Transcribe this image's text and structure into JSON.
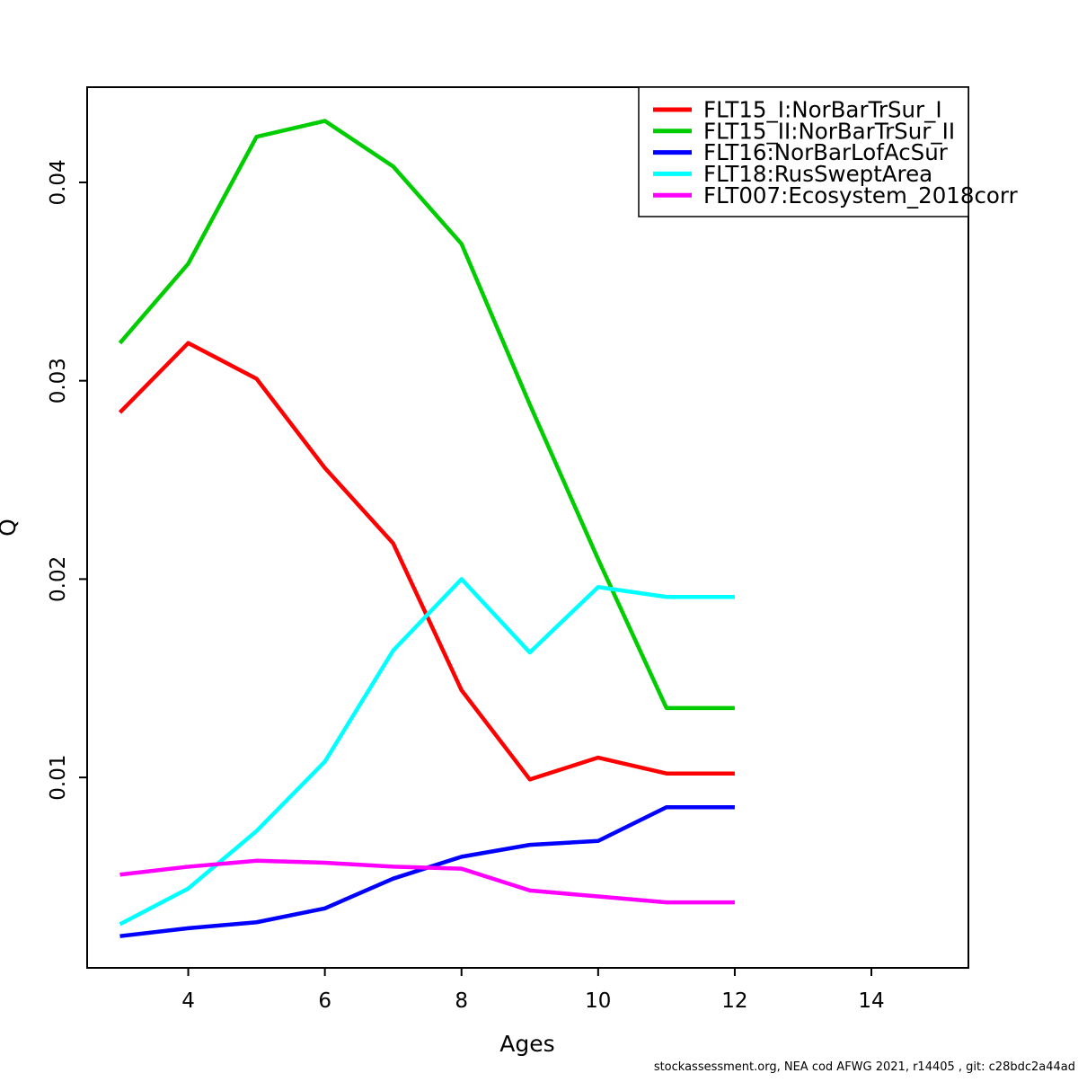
{
  "figure": {
    "footer": "stockassessment.org, NEA cod AFWG 2021, r14405 , git: c28bdc2a44ad"
  },
  "chart_data": {
    "type": "line",
    "title": "",
    "xlabel": "Ages",
    "ylabel": "Q",
    "x": [
      3,
      4,
      5,
      6,
      7,
      8,
      9,
      10,
      11,
      12
    ],
    "series": [
      {
        "name": "FLT15_I:NorBarTrSur_I",
        "color": "#FF0000",
        "values": [
          0.0284,
          0.0319,
          0.0301,
          0.0256,
          0.0218,
          0.0144,
          0.0099,
          0.011,
          0.0102,
          0.0102
        ]
      },
      {
        "name": "FLT15_II:NorBarTrSur_II",
        "color": "#00CD00",
        "values": [
          0.0319,
          0.0359,
          0.0423,
          0.0431,
          0.0408,
          0.0369,
          0.0288,
          0.021,
          0.0135,
          0.0135
        ]
      },
      {
        "name": "FLT16:NorBarLofAcSur",
        "color": "#0000FF",
        "values": [
          0.002,
          0.0024,
          0.0027,
          0.0034,
          0.0049,
          0.006,
          0.0066,
          0.0068,
          0.0085,
          0.0085
        ]
      },
      {
        "name": "FLT18:RusSweptArea",
        "color": "#00FFFF",
        "values": [
          0.0026,
          0.0044,
          0.0073,
          0.0108,
          0.0164,
          0.02,
          0.0163,
          0.0196,
          0.0191,
          0.0191
        ]
      },
      {
        "name": "FLT007:Ecosystem_2018corr",
        "color": "#FF00FF",
        "values": [
          0.0051,
          0.0055,
          0.0058,
          0.0057,
          0.0055,
          0.0054,
          0.0043,
          0.004,
          0.0037,
          0.0037
        ]
      }
    ],
    "x_ticks": [
      4,
      6,
      8,
      10,
      12,
      14
    ],
    "y_ticks": [
      0.01,
      0.02,
      0.03,
      0.04
    ],
    "xlim": [
      2.52,
      15.42
    ],
    "ylim": [
      0.0004,
      0.0448
    ],
    "grid": false,
    "legend_position": "topright"
  }
}
